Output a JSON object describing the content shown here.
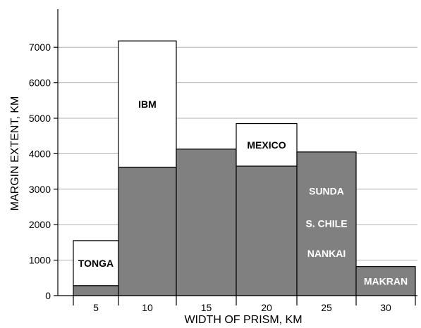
{
  "chart_data": {
    "type": "bar",
    "stacked": true,
    "xlabel": "WIDTH OF PRISM, KM",
    "ylabel": "MARGIN EXTENT, KM",
    "x_ticks": [
      "5",
      "10",
      "15",
      "20",
      "25",
      "30"
    ],
    "y_ticks": [
      "0",
      "1000",
      "2000",
      "3000",
      "4000",
      "5000",
      "6000",
      "7000"
    ],
    "ylim": [
      0,
      8000
    ],
    "grid": true,
    "colors": {
      "gray": "#808080",
      "white": "#ffffff",
      "border": "#000000",
      "grid": "#b0b0b0"
    },
    "bins": [
      {
        "x": 5,
        "gray": 280,
        "white_top": 1550,
        "label": "TONGA"
      },
      {
        "x": 10,
        "gray": 3620,
        "white_top": 7180,
        "label": "IBM"
      },
      {
        "x": 15,
        "gray": 4130,
        "white_top": null,
        "label": ""
      },
      {
        "x": 20,
        "gray": 3650,
        "white_top": 4850,
        "label": "MEXICO"
      },
      {
        "x": 25,
        "gray": 4050,
        "white_top": null,
        "label": ""
      },
      {
        "x": 30,
        "gray": 820,
        "white_top": null,
        "label": "MAKRAN"
      }
    ],
    "annotations": [
      {
        "text": "SUNDA",
        "x": 25,
        "y": 2950
      },
      {
        "text": "S. CHILE",
        "x": 25,
        "y": 2030
      },
      {
        "text": "NANKAI",
        "x": 25,
        "y": 1190
      }
    ]
  }
}
